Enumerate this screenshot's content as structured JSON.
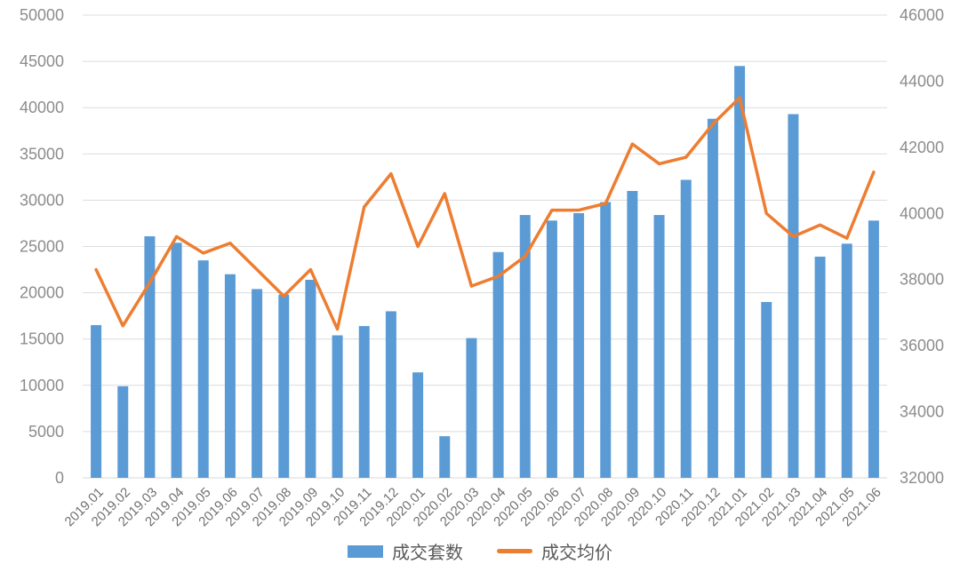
{
  "chart_data": {
    "type": "combo",
    "subtypes": [
      "bar",
      "line"
    ],
    "categories": [
      "2019.01",
      "2019.02",
      "2019.03",
      "2019.04",
      "2019.05",
      "2019.06",
      "2019.07",
      "2019.08",
      "2019.09",
      "2019.10",
      "2019.11",
      "2019.12",
      "2020.01",
      "2020.02",
      "2020.03",
      "2020.04",
      "2020.05",
      "2020.06",
      "2020.07",
      "2020.08",
      "2020.09",
      "2020.10",
      "2020.11",
      "2020.12",
      "2021.01",
      "2021.02",
      "2021.03",
      "2021.04",
      "2021.05",
      "2021.06"
    ],
    "series": [
      {
        "name": "成交套数",
        "type": "bar",
        "axis": "left",
        "color": "#5B9BD5",
        "values": [
          16500,
          9900,
          26100,
          25400,
          23500,
          22000,
          20400,
          19800,
          21400,
          15400,
          16400,
          18000,
          11400,
          4500,
          15100,
          24400,
          28400,
          27800,
          28600,
          29800,
          31000,
          28400,
          32200,
          38800,
          44500,
          19000,
          39300,
          23900,
          25300,
          27800
        ]
      },
      {
        "name": "成交均价",
        "type": "line",
        "axis": "right",
        "color": "#ED7D31",
        "values": [
          38300,
          36600,
          37900,
          39300,
          38800,
          39100,
          38300,
          37500,
          38300,
          36500,
          40200,
          41200,
          39000,
          40600,
          37800,
          38100,
          38700,
          40100,
          40100,
          40300,
          42100,
          41500,
          41700,
          42700,
          43500,
          40000,
          39300,
          39650,
          39250,
          41250
        ]
      }
    ],
    "axes": {
      "left": {
        "min": 0,
        "max": 50000,
        "step": 5000,
        "tick_labels": [
          "0",
          "5000",
          "10000",
          "15000",
          "20000",
          "25000",
          "30000",
          "35000",
          "40000",
          "45000",
          "50000"
        ]
      },
      "right": {
        "min": 32000,
        "max": 46000,
        "step": 2000,
        "tick_labels": [
          "32000",
          "34000",
          "36000",
          "38000",
          "40000",
          "42000",
          "44000",
          "46000"
        ]
      }
    },
    "title": "",
    "xlabel": "",
    "ylabel": "",
    "grid": true,
    "legend_position": "bottom",
    "style": {
      "grid_color": "#DCDCDC",
      "axis_line_color": "#D9D9D9",
      "tick_text_color": "#8C8C8C",
      "x_label_color": "#707070",
      "background": "#FFFFFF"
    }
  },
  "legend": {
    "items": [
      {
        "label": "成交套数",
        "swatch": "bar-swatch",
        "color": "#5B9BD5"
      },
      {
        "label": "成交均价",
        "swatch": "line-swatch",
        "color": "#ED7D31"
      }
    ]
  }
}
